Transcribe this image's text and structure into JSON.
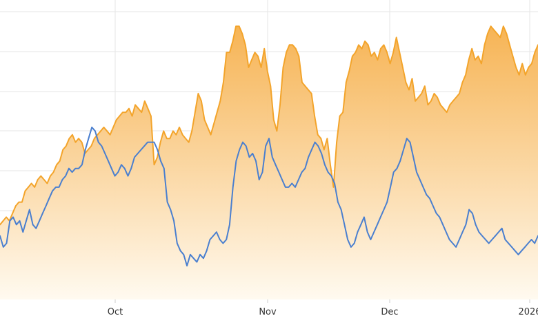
{
  "chart_data": {
    "type": "area",
    "x_ticks": [
      "Oct",
      "Nov",
      "Dec",
      "2026"
    ],
    "grid": true,
    "ylim": [
      0,
      8
    ],
    "colors": {
      "orange_line": "#f3a42b",
      "orange_fill_top": "#f6b04c",
      "orange_fill_bottom": "#fffaf0",
      "blue_line": "#4a7fcf",
      "grid": "#e6e6e6"
    },
    "series": [
      {
        "values": [
          2.0,
          2.1,
          2.2,
          2.1,
          2.3,
          2.5,
          2.6,
          2.6,
          2.9,
          3.0,
          3.1,
          3.0,
          3.2,
          3.3,
          3.2,
          3.1,
          3.3,
          3.4,
          3.6,
          3.7,
          4.0,
          4.1,
          4.3,
          4.4,
          4.2,
          4.3,
          4.2,
          3.9,
          4.0,
          4.1,
          4.3,
          4.4,
          4.5,
          4.6,
          4.5,
          4.4,
          4.6,
          4.8,
          4.9,
          5.0,
          5.0,
          5.1,
          4.9,
          5.2,
          5.1,
          5.0,
          5.3,
          5.1,
          4.9,
          3.6,
          3.8,
          4.2,
          4.5,
          4.3,
          4.3,
          4.5,
          4.4,
          4.6,
          4.4,
          4.3,
          4.2,
          4.5,
          5.0,
          5.5,
          5.3,
          4.8,
          4.6,
          4.4,
          4.7,
          5.0,
          5.3,
          5.8,
          6.6,
          6.6,
          6.9,
          7.3,
          7.3,
          7.1,
          6.8,
          6.2,
          6.4,
          6.6,
          6.5,
          6.2,
          6.7,
          6.1,
          5.7,
          4.8,
          4.5,
          5.2,
          6.2,
          6.6,
          6.8,
          6.8,
          6.7,
          6.5,
          5.8,
          5.7,
          5.6,
          5.5,
          4.9,
          4.4,
          4.3,
          4.0,
          4.3,
          3.6,
          3.0,
          4.2,
          4.9,
          5.0,
          5.8,
          6.1,
          6.5,
          6.6,
          6.8,
          6.7,
          6.9,
          6.8,
          6.5,
          6.6,
          6.4,
          6.7,
          6.8,
          6.6,
          6.3,
          6.6,
          7.0,
          6.6,
          6.2,
          5.8,
          5.6,
          5.9,
          5.3,
          5.4,
          5.5,
          5.7,
          5.2,
          5.3,
          5.5,
          5.4,
          5.2,
          5.1,
          5.0,
          5.2,
          5.3,
          5.4,
          5.5,
          5.8,
          6.0,
          6.4,
          6.7,
          6.4,
          6.5,
          6.3,
          6.8,
          7.1,
          7.3,
          7.2,
          7.1,
          7.0,
          7.3,
          7.1,
          6.8,
          6.5,
          6.2,
          6.0,
          6.3,
          6.0,
          6.2,
          6.3,
          6.6,
          6.8
        ],
        "fill": true
      },
      {
        "values": [
          1.7,
          1.4,
          1.5,
          2.1,
          2.2,
          2.0,
          2.1,
          1.8,
          2.1,
          2.4,
          2.0,
          1.9,
          2.1,
          2.3,
          2.5,
          2.7,
          2.9,
          3.0,
          3.0,
          3.2,
          3.3,
          3.5,
          3.4,
          3.5,
          3.5,
          3.6,
          4.0,
          4.3,
          4.6,
          4.5,
          4.2,
          4.1,
          3.9,
          3.7,
          3.5,
          3.3,
          3.4,
          3.6,
          3.5,
          3.3,
          3.5,
          3.8,
          3.9,
          4.0,
          4.1,
          4.2,
          4.2,
          4.2,
          4.0,
          3.7,
          3.5,
          2.6,
          2.4,
          2.1,
          1.5,
          1.3,
          1.2,
          0.9,
          1.2,
          1.1,
          1.0,
          1.2,
          1.1,
          1.3,
          1.6,
          1.7,
          1.8,
          1.6,
          1.5,
          1.6,
          2.0,
          3.0,
          3.7,
          4.0,
          4.2,
          4.1,
          3.8,
          3.9,
          3.7,
          3.2,
          3.4,
          4.1,
          4.3,
          3.8,
          3.6,
          3.4,
          3.2,
          3.0,
          3.0,
          3.1,
          3.0,
          3.2,
          3.4,
          3.5,
          3.8,
          4.0,
          4.2,
          4.1,
          3.9,
          3.6,
          3.4,
          3.3,
          3.1,
          2.6,
          2.4,
          2.0,
          1.6,
          1.4,
          1.5,
          1.8,
          2.0,
          2.2,
          1.8,
          1.6,
          1.8,
          2.0,
          2.2,
          2.4,
          2.6,
          3.0,
          3.4,
          3.5,
          3.7,
          4.0,
          4.3,
          4.2,
          3.8,
          3.4,
          3.2,
          3.0,
          2.8,
          2.7,
          2.5,
          2.3,
          2.2,
          2.0,
          1.8,
          1.6,
          1.5,
          1.4,
          1.6,
          1.8,
          2.0,
          2.4,
          2.3,
          2.0,
          1.8,
          1.7,
          1.6,
          1.5,
          1.6,
          1.7,
          1.8,
          1.9,
          1.6,
          1.5,
          1.4,
          1.3,
          1.2,
          1.3,
          1.4,
          1.5,
          1.6,
          1.5,
          1.7
        ],
        "fill": false
      }
    ]
  }
}
